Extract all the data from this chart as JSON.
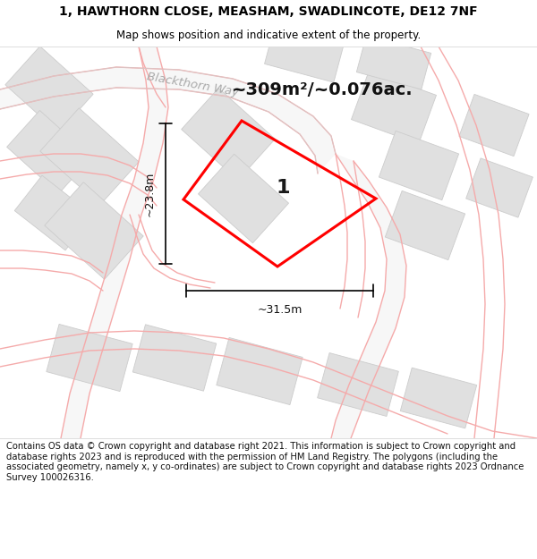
{
  "title_line1": "1, HAWTHORN CLOSE, MEASHAM, SWADLINCOTE, DE12 7NF",
  "title_line2": "Map shows position and indicative extent of the property.",
  "footer_text": "Contains OS data © Crown copyright and database right 2021. This information is subject to Crown copyright and database rights 2023 and is reproduced with the permission of HM Land Registry. The polygons (including the associated geometry, namely x, y co-ordinates) are subject to Crown copyright and database rights 2023 Ordnance Survey 100026316.",
  "area_text": "~309m²/~0.076ac.",
  "label": "1",
  "width_label": "~31.5m",
  "height_label": "~23.8m",
  "map_bg": "#ffffff",
  "title_bg": "#ffffff",
  "footer_bg": "#ffffff",
  "plot_color": "#ff0000",
  "road_text": "Blackthorn Way",
  "road_text_color": "#aaaaaa",
  "dim_line_color": "#000000",
  "building_fill": "#e0e0e0",
  "building_edge": "#cccccc",
  "road_line_color": "#f5aaaa",
  "road_grey_color": "#d0d0d0",
  "title_fontsize": 10,
  "subtitle_fontsize": 8.5,
  "area_fontsize": 14,
  "label_fontsize": 16,
  "dim_fontsize": 9,
  "footer_fontsize": 7.2
}
